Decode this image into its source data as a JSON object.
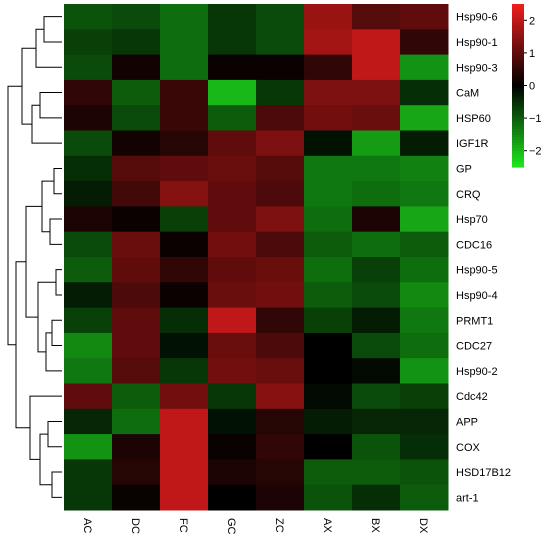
{
  "chart_data": {
    "type": "heatmap",
    "title": "",
    "xlabel": "",
    "ylabel": "",
    "columns": [
      "AC",
      "DC",
      "FC",
      "GC",
      "ZC",
      "AX",
      "BX",
      "DX"
    ],
    "rows": [
      "Hsp90-6",
      "Hsp90-1",
      "Hsp90-3",
      "CaM",
      "HSP60",
      "IGF1R",
      "GP",
      "CRQ",
      "Hsp70",
      "CDC16",
      "Hsp90-5",
      "Hsp90-4",
      "PRMT1",
      "CDC27",
      "Hsp90-2",
      "Cdc42",
      "APP",
      "COX",
      "HSD17B12",
      "art-1"
    ],
    "values": [
      [
        -0.9,
        -0.8,
        -1.2,
        -0.6,
        -0.8,
        1.6,
        0.9,
        1.0
      ],
      [
        -0.7,
        -0.6,
        -1.2,
        -0.6,
        -0.8,
        1.7,
        2.0,
        0.5
      ],
      [
        -0.8,
        0.2,
        -1.2,
        0.1,
        0.1,
        0.5,
        2.0,
        -1.6
      ],
      [
        0.5,
        -1.0,
        0.6,
        -2.0,
        -0.6,
        1.3,
        1.3,
        -0.5
      ],
      [
        0.3,
        -0.8,
        0.6,
        -1.0,
        0.8,
        1.2,
        1.1,
        -1.8
      ],
      [
        -0.8,
        0.2,
        0.4,
        1.0,
        1.3,
        -0.2,
        -1.7,
        -0.3
      ],
      [
        -0.5,
        0.9,
        1.0,
        1.1,
        0.9,
        -1.3,
        -1.3,
        -1.4
      ],
      [
        -0.3,
        0.7,
        1.4,
        1.0,
        0.8,
        -1.3,
        -1.2,
        -1.3
      ],
      [
        0.3,
        0.1,
        -0.7,
        1.0,
        1.3,
        -1.2,
        0.3,
        -1.8
      ],
      [
        -0.8,
        1.1,
        0.1,
        1.2,
        0.8,
        -1.0,
        -1.2,
        -1.0
      ],
      [
        -1.0,
        1.0,
        0.5,
        1.0,
        1.1,
        -1.2,
        -0.7,
        -1.2
      ],
      [
        -0.3,
        0.8,
        0.1,
        1.1,
        1.2,
        -1.0,
        -0.8,
        -1.5
      ],
      [
        -0.7,
        1.0,
        -0.5,
        2.0,
        0.5,
        -0.7,
        -0.3,
        -1.3
      ],
      [
        -1.5,
        1.0,
        -0.2,
        1.1,
        0.8,
        0.0,
        -0.8,
        -1.2
      ],
      [
        -1.3,
        0.9,
        -0.6,
        1.2,
        1.1,
        0.0,
        -0.1,
        -1.6
      ],
      [
        1.0,
        -1.0,
        1.2,
        -0.6,
        1.4,
        -0.1,
        -0.8,
        -0.7
      ],
      [
        -0.4,
        -1.2,
        2.0,
        -0.2,
        0.4,
        -0.3,
        -0.4,
        -0.4
      ],
      [
        -1.6,
        0.3,
        2.0,
        0.1,
        0.5,
        0.0,
        -0.9,
        -0.5
      ],
      [
        -0.6,
        0.4,
        2.0,
        0.3,
        0.4,
        -1.0,
        -1.0,
        -0.9
      ],
      [
        -0.6,
        0.1,
        2.0,
        0.0,
        0.3,
        -0.9,
        -0.5,
        -1.0
      ]
    ],
    "color_scale": {
      "min": -2.5,
      "max": 2.5,
      "low": "#1EE61E",
      "mid": "#000000",
      "high": "#F01E1E"
    },
    "colorbar_ticks": [
      2,
      1,
      0,
      -1,
      -2
    ],
    "row_dendrogram": true,
    "legend": "top-right"
  }
}
